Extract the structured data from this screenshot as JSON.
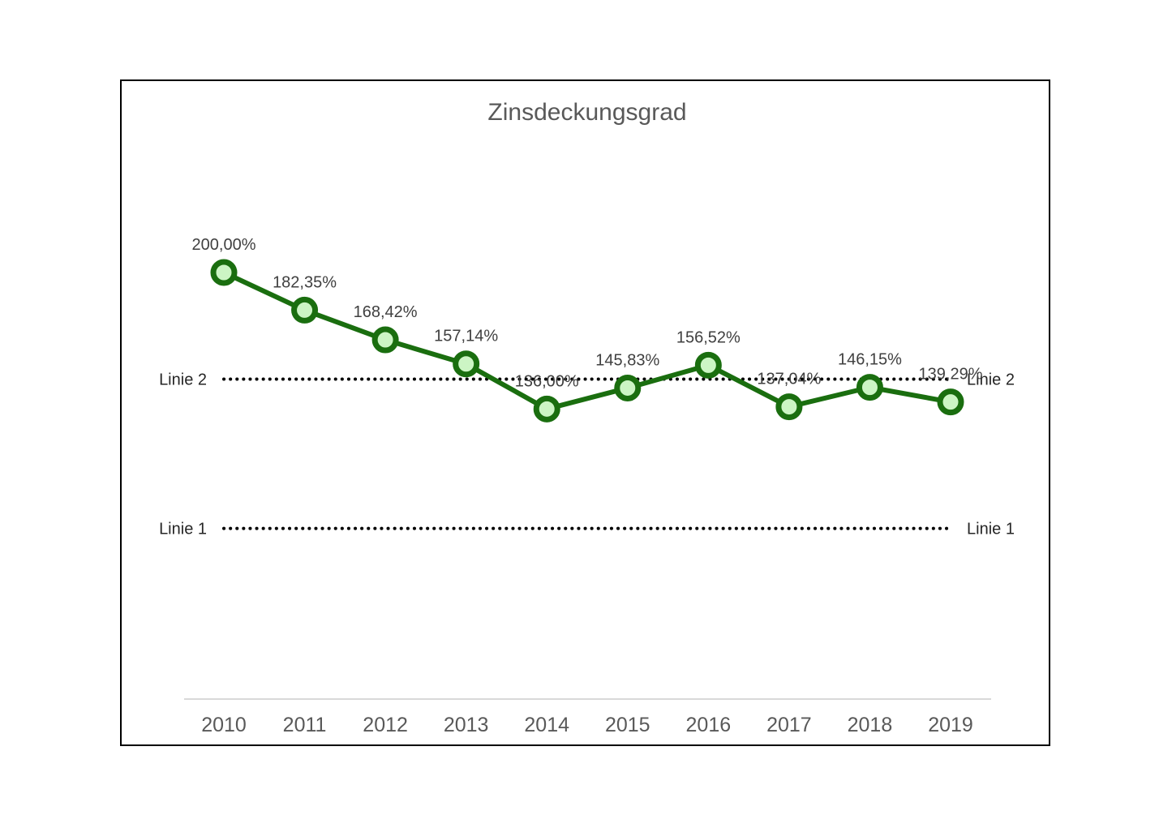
{
  "chart_data": {
    "type": "line",
    "title": "Zinsdeckungsgrad",
    "categories": [
      "2010",
      "2011",
      "2012",
      "2013",
      "2014",
      "2015",
      "2016",
      "2017",
      "2018",
      "2019"
    ],
    "series": [
      {
        "values": [
          200.0,
          182.35,
          168.42,
          157.14,
          136.0,
          145.83,
          156.52,
          137.04,
          146.15,
          139.29
        ],
        "labels": [
          "200,00%",
          "182,35%",
          "168,42%",
          "157,14%",
          "136,00%",
          "145,83%",
          "156,52%",
          "137,04%",
          "146,15%",
          "139,29%"
        ],
        "color": "#1a6e0f",
        "marker_fill": "#ccf5c4"
      }
    ],
    "reference_lines": [
      {
        "name": "Linie 2",
        "value": 150,
        "style": "dotted",
        "color": "#000000"
      },
      {
        "name": "Linie 1",
        "value": 80,
        "style": "dotted",
        "color": "#000000"
      }
    ],
    "ylim": [
      0,
      320
    ],
    "grid": false,
    "legend": "none"
  }
}
